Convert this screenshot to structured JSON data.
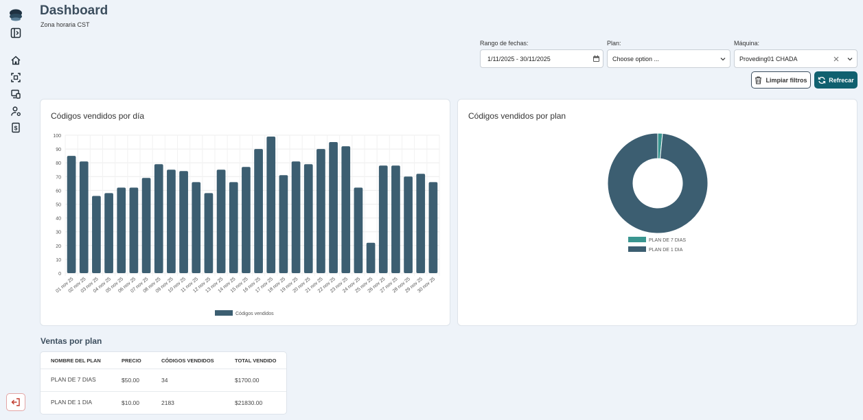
{
  "page": {
    "title": "Dashboard",
    "timezone": "Zona horaria CST"
  },
  "sidebar": {
    "items": [
      {
        "name": "app-logo",
        "icon": "logo-icon"
      },
      {
        "name": "toggle-sidebar",
        "icon": "sidebar-toggle-icon"
      },
      {
        "name": "home",
        "icon": "home-icon"
      },
      {
        "name": "qr-scan",
        "icon": "scan-icon"
      },
      {
        "name": "devices",
        "icon": "devices-icon"
      },
      {
        "name": "users",
        "icon": "user-settings-icon"
      },
      {
        "name": "billing",
        "icon": "dollar-document-icon"
      }
    ],
    "logout_icon": "logout-icon"
  },
  "filters": {
    "date_range": {
      "label": "Rango de fechas:",
      "value": "1/11/2025 - 30/11/2025"
    },
    "plan": {
      "label": "Plan:",
      "value": "Choose option ..."
    },
    "machine": {
      "label": "Máquina:",
      "value": "Proveding01 CHADA"
    },
    "clear_label": "Limpiar filtros",
    "refresh_label": "Refrecar"
  },
  "colors": {
    "primary": "#3c5e71",
    "teal": "#3a9690",
    "button": "#10606f",
    "background": "#eef3f9"
  },
  "bar_card": {
    "title": "Códigos vendidos por día"
  },
  "pie_card": {
    "title": "Códigos vendidos por plan"
  },
  "chart_data": [
    {
      "type": "bar",
      "title": "Códigos vendidos por día",
      "categories": [
        "01 nov 25",
        "02 nov 25",
        "03 nov 25",
        "04 nov 25",
        "05 nov 25",
        "06 nov 25",
        "07 nov 25",
        "08 nov 25",
        "09 nov 25",
        "10 nov 25",
        "11 nov 25",
        "12 nov 25",
        "13 nov 25",
        "14 nov 25",
        "15 nov 25",
        "16 nov 25",
        "17 nov 25",
        "18 nov 25",
        "19 nov 25",
        "20 nov 25",
        "21 nov 25",
        "22 nov 25",
        "23 nov 25",
        "24 nov 25",
        "25 nov 25",
        "26 nov 25",
        "27 nov 25",
        "28 nov 25",
        "29 nov 25",
        "30 nov 25"
      ],
      "series": [
        {
          "name": "Códigos vendidos",
          "values": [
            85,
            81,
            56,
            58,
            62,
            62,
            69,
            79,
            75,
            74,
            66,
            58,
            75,
            66,
            77,
            90,
            99,
            71,
            81,
            79,
            90,
            95,
            92,
            62,
            22,
            78,
            78,
            70,
            72,
            66
          ]
        }
      ],
      "yticks": [
        "0",
        "10",
        "20",
        "30",
        "40",
        "50",
        "60",
        "70",
        "80",
        "90",
        "100"
      ],
      "ylim": [
        0,
        100
      ],
      "legend": "bottom",
      "grid": true
    },
    {
      "type": "pie",
      "title": "Códigos vendidos por plan",
      "donut": true,
      "labels": [
        "PLAN DE 7 DIAS",
        "PLAN DE 1 DIA"
      ],
      "values": [
        34,
        2183
      ],
      "legend": "bottom"
    }
  ],
  "sales_table": {
    "title": "Ventas por plan",
    "headers": [
      "NOMBRE DEL PLAN",
      "PRECIO",
      "CÓDIGOS VENDIDOS",
      "TOTAL VENDIDO"
    ],
    "rows": [
      [
        "PLAN DE 7 DIAS",
        "$50.00",
        "34",
        "$1700.00"
      ],
      [
        "PLAN DE 1 DIA",
        "$10.00",
        "2183",
        "$21830.00"
      ]
    ]
  }
}
